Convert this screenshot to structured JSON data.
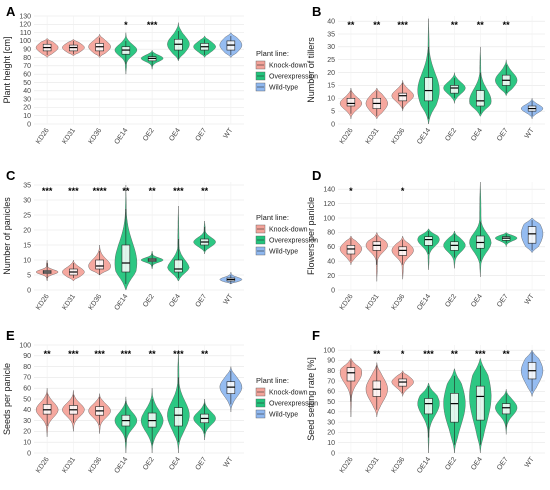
{
  "colors": {
    "Knock-down": "#F4A39A",
    "Overexpression": "#22C47C",
    "Wild-type": "#8FB8F0"
  },
  "categories": [
    "KD26",
    "KD31",
    "KD36",
    "OE14",
    "OE2",
    "OE4",
    "OE7",
    "WT"
  ],
  "groups": [
    "Knock-down",
    "Knock-down",
    "Knock-down",
    "Overexpression",
    "Overexpression",
    "Overexpression",
    "Overexpression",
    "Wild-type"
  ],
  "legend": {
    "title": "Plant line:",
    "items": [
      {
        "label": "Knock-down",
        "color": "#F4A39A"
      },
      {
        "label": "Overexpression",
        "color": "#22C47C"
      },
      {
        "label": "Wild-type",
        "color": "#8FB8F0"
      }
    ]
  },
  "chart_data": [
    {
      "panel": "A",
      "type": "violin",
      "ylabel": "Plant height [cm]",
      "ylim": [
        0,
        130
      ],
      "yticks": [
        0,
        10,
        20,
        30,
        40,
        50,
        60,
        70,
        80,
        90,
        100,
        110,
        120,
        130
      ],
      "significance": [
        "",
        "",
        "",
        "*",
        "***",
        "",
        "",
        ""
      ],
      "series": [
        {
          "name": "KD26",
          "min": 80,
          "q1": 88,
          "median": 92,
          "q3": 96,
          "max": 103,
          "whisker_low": 83,
          "whisker_high": 101
        },
        {
          "name": "KD31",
          "min": 82,
          "q1": 88,
          "median": 92,
          "q3": 95,
          "max": 102,
          "whisker_low": 84,
          "whisker_high": 100
        },
        {
          "name": "KD36",
          "min": 80,
          "q1": 88,
          "median": 93,
          "q3": 97,
          "max": 108,
          "whisker_low": 82,
          "whisker_high": 104
        },
        {
          "name": "OE14",
          "min": 60,
          "q1": 84,
          "median": 89,
          "q3": 93,
          "max": 110,
          "whisker_low": 72,
          "whisker_high": 100
        },
        {
          "name": "OE2",
          "min": 66,
          "q1": 76,
          "median": 79,
          "q3": 81,
          "max": 89,
          "whisker_low": 70,
          "whisker_high": 86
        },
        {
          "name": "OE4",
          "min": 76,
          "q1": 89,
          "median": 96,
          "q3": 102,
          "max": 122,
          "whisker_low": 78,
          "whisker_high": 112
        },
        {
          "name": "OE7",
          "min": 80,
          "q1": 89,
          "median": 93,
          "q3": 97,
          "max": 106,
          "whisker_low": 83,
          "whisker_high": 102
        },
        {
          "name": "WT",
          "min": 80,
          "q1": 89,
          "median": 95,
          "q3": 100,
          "max": 110,
          "whisker_low": 83,
          "whisker_high": 106
        }
      ]
    },
    {
      "panel": "B",
      "type": "violin",
      "ylabel": "Number of tillers",
      "ylim": [
        0,
        42
      ],
      "yticks": [
        0,
        5,
        10,
        15,
        20,
        25,
        30,
        35,
        40
      ],
      "significance": [
        "**",
        "**",
        "***",
        "",
        "**",
        "**",
        "**",
        ""
      ],
      "series": [
        {
          "name": "KD26",
          "min": 2,
          "q1": 7,
          "median": 8,
          "q3": 10,
          "max": 14,
          "whisker_low": 4,
          "whisker_high": 13
        },
        {
          "name": "KD31",
          "min": 2,
          "q1": 6,
          "median": 8,
          "q3": 10,
          "max": 14,
          "whisker_low": 3,
          "whisker_high": 13
        },
        {
          "name": "KD36",
          "min": 5,
          "q1": 9,
          "median": 11,
          "q3": 12,
          "max": 17,
          "whisker_low": 6,
          "whisker_high": 16
        },
        {
          "name": "OE14",
          "min": 0,
          "q1": 9,
          "median": 13,
          "q3": 18,
          "max": 41,
          "whisker_low": 2,
          "whisker_high": 30
        },
        {
          "name": "OE2",
          "min": 8,
          "q1": 12,
          "median": 14,
          "q3": 15,
          "max": 20,
          "whisker_low": 10,
          "whisker_high": 18
        },
        {
          "name": "OE4",
          "min": 3,
          "q1": 7,
          "median": 9,
          "q3": 13,
          "max": 30,
          "whisker_low": 4,
          "whisker_high": 20
        },
        {
          "name": "OE7",
          "min": 11,
          "q1": 15,
          "median": 17,
          "q3": 19,
          "max": 25,
          "whisker_low": 12,
          "whisker_high": 23
        },
        {
          "name": "WT",
          "min": 2,
          "q1": 5,
          "median": 6,
          "q3": 7,
          "max": 10,
          "whisker_low": 3,
          "whisker_high": 9
        }
      ]
    },
    {
      "panel": "C",
      "type": "violin",
      "ylabel": "Number of panicles",
      "ylim": [
        0,
        36
      ],
      "yticks": [
        0,
        5,
        10,
        15,
        20,
        25,
        30,
        35
      ],
      "significance": [
        "***",
        "***",
        "****",
        "**",
        "**",
        "***",
        "**",
        ""
      ],
      "series": [
        {
          "name": "KD26",
          "min": 3,
          "q1": 5.5,
          "median": 6,
          "q3": 6.5,
          "max": 10,
          "whisker_low": 4,
          "whisker_high": 9
        },
        {
          "name": "KD31",
          "min": 3,
          "q1": 5,
          "median": 6,
          "q3": 7,
          "max": 10,
          "whisker_low": 4,
          "whisker_high": 9
        },
        {
          "name": "KD36",
          "min": 5,
          "q1": 7,
          "median": 8,
          "q3": 10,
          "max": 15,
          "whisker_low": 5,
          "whisker_high": 13
        },
        {
          "name": "OE14",
          "min": 0,
          "q1": 6,
          "median": 9,
          "q3": 15,
          "max": 35,
          "whisker_low": 2,
          "whisker_high": 27
        },
        {
          "name": "OE2",
          "min": 7,
          "q1": 9.5,
          "median": 10,
          "q3": 10.5,
          "max": 13,
          "whisker_low": 8,
          "whisker_high": 12
        },
        {
          "name": "OE4",
          "min": 3,
          "q1": 6,
          "median": 7,
          "q3": 10,
          "max": 28,
          "whisker_low": 4,
          "whisker_high": 17
        },
        {
          "name": "OE7",
          "min": 12,
          "q1": 15,
          "median": 16,
          "q3": 17,
          "max": 23,
          "whisker_low": 13,
          "whisker_high": 21
        },
        {
          "name": "WT",
          "min": 2,
          "q1": 3,
          "median": 3.5,
          "q3": 4,
          "max": 6,
          "whisker_low": 2,
          "whisker_high": 5
        }
      ]
    },
    {
      "panel": "D",
      "type": "violin",
      "ylabel": "Flowers per panicle",
      "ylim": [
        0,
        150
      ],
      "yticks": [
        0,
        20,
        40,
        60,
        80,
        100,
        120,
        140
      ],
      "significance": [
        "*",
        "",
        "*",
        "",
        "",
        "",
        "",
        ""
      ],
      "series": [
        {
          "name": "KD26",
          "min": 35,
          "q1": 50,
          "median": 57,
          "q3": 62,
          "max": 75,
          "whisker_low": 40,
          "whisker_high": 72
        },
        {
          "name": "KD31",
          "min": 12,
          "q1": 55,
          "median": 62,
          "q3": 67,
          "max": 80,
          "whisker_low": 35,
          "whisker_high": 76
        },
        {
          "name": "KD36",
          "min": 15,
          "q1": 48,
          "median": 55,
          "q3": 60,
          "max": 75,
          "whisker_low": 35,
          "whisker_high": 70
        },
        {
          "name": "OE14",
          "min": 28,
          "q1": 62,
          "median": 70,
          "q3": 74,
          "max": 85,
          "whisker_low": 50,
          "whisker_high": 82
        },
        {
          "name": "OE2",
          "min": 30,
          "q1": 55,
          "median": 62,
          "q3": 67,
          "max": 82,
          "whisker_low": 45,
          "whisker_high": 78
        },
        {
          "name": "OE4",
          "min": 18,
          "q1": 58,
          "median": 66,
          "q3": 75,
          "max": 150,
          "whisker_low": 40,
          "whisker_high": 95
        },
        {
          "name": "OE7",
          "min": 60,
          "q1": 69,
          "median": 72,
          "q3": 74,
          "max": 80,
          "whisker_low": 65,
          "whisker_high": 78
        },
        {
          "name": "WT",
          "min": 52,
          "q1": 65,
          "median": 78,
          "q3": 88,
          "max": 100,
          "whisker_low": 55,
          "whisker_high": 97
        }
      ]
    },
    {
      "panel": "E",
      "type": "violin",
      "ylabel": "Seeds per panicle",
      "ylim": [
        0,
        100
      ],
      "yticks": [
        0,
        10,
        20,
        30,
        40,
        50,
        60,
        70,
        80,
        90,
        100
      ],
      "significance": [
        "**",
        "***",
        "***",
        "***",
        "**",
        "***",
        "**",
        ""
      ],
      "series": [
        {
          "name": "KD26",
          "min": 15,
          "q1": 36,
          "median": 40,
          "q3": 45,
          "max": 60,
          "whisker_low": 25,
          "whisker_high": 55
        },
        {
          "name": "KD31",
          "min": 20,
          "q1": 36,
          "median": 40,
          "q3": 44,
          "max": 58,
          "whisker_low": 28,
          "whisker_high": 54
        },
        {
          "name": "KD36",
          "min": 18,
          "q1": 35,
          "median": 39,
          "q3": 43,
          "max": 55,
          "whisker_low": 26,
          "whisker_high": 52
        },
        {
          "name": "OE14",
          "min": 0,
          "q1": 25,
          "median": 30,
          "q3": 35,
          "max": 52,
          "whisker_low": 10,
          "whisker_high": 48
        },
        {
          "name": "OE2",
          "min": 0,
          "q1": 24,
          "median": 30,
          "q3": 37,
          "max": 60,
          "whisker_low": 8,
          "whisker_high": 50
        },
        {
          "name": "OE4",
          "min": 0,
          "q1": 25,
          "median": 35,
          "q3": 42,
          "max": 95,
          "whisker_low": 10,
          "whisker_high": 70
        },
        {
          "name": "OE7",
          "min": 12,
          "q1": 28,
          "median": 32,
          "q3": 36,
          "max": 50,
          "whisker_low": 18,
          "whisker_high": 46
        },
        {
          "name": "WT",
          "min": 38,
          "q1": 55,
          "median": 61,
          "q3": 66,
          "max": 80,
          "whisker_low": 45,
          "whisker_high": 76
        }
      ]
    },
    {
      "panel": "F",
      "type": "violin",
      "ylabel": "Seed setting rate [%]",
      "ylim": [
        0,
        105
      ],
      "yticks": [
        0,
        10,
        20,
        30,
        40,
        50,
        60,
        70,
        80,
        90,
        100
      ],
      "significance": [
        "",
        "**",
        "*",
        "***",
        "**",
        "***",
        "**",
        ""
      ],
      "series": [
        {
          "name": "KD26",
          "min": 35,
          "q1": 70,
          "median": 78,
          "q3": 83,
          "max": 92,
          "whisker_low": 50,
          "whisker_high": 90
        },
        {
          "name": "KD31",
          "min": 35,
          "q1": 55,
          "median": 62,
          "q3": 70,
          "max": 88,
          "whisker_low": 42,
          "whisker_high": 85
        },
        {
          "name": "KD36",
          "min": 55,
          "q1": 65,
          "median": 69,
          "q3": 72,
          "max": 80,
          "whisker_low": 58,
          "whisker_high": 78
        },
        {
          "name": "OE14",
          "min": 0,
          "q1": 38,
          "median": 48,
          "q3": 53,
          "max": 68,
          "whisker_low": 15,
          "whisker_high": 65
        },
        {
          "name": "OE2",
          "min": 0,
          "q1": 30,
          "median": 48,
          "q3": 58,
          "max": 82,
          "whisker_low": 8,
          "whisker_high": 75
        },
        {
          "name": "OE4",
          "min": 0,
          "q1": 32,
          "median": 55,
          "q3": 65,
          "max": 92,
          "whisker_low": 8,
          "whisker_high": 85
        },
        {
          "name": "OE7",
          "min": 18,
          "q1": 38,
          "median": 44,
          "q3": 48,
          "max": 62,
          "whisker_low": 25,
          "whisker_high": 58
        },
        {
          "name": "WT",
          "min": 55,
          "q1": 72,
          "median": 80,
          "q3": 88,
          "max": 100,
          "whisker_low": 60,
          "whisker_high": 98
        }
      ]
    }
  ]
}
